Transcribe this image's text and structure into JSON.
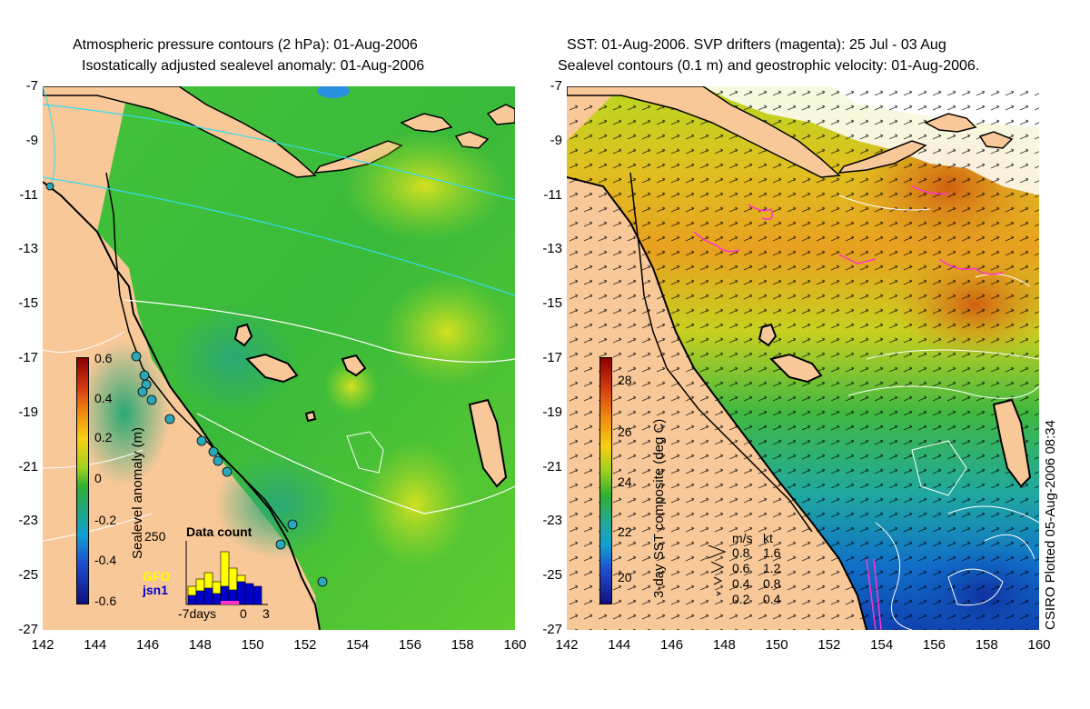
{
  "left_panel": {
    "title_line1": "Atmospheric pressure contours (2 hPa): 01-Aug-2006",
    "title_line2": "Isostatically adjusted sealevel anomaly: 01-Aug-2006",
    "colorbar_label": "Sealevel anomaly (m)",
    "colorbar_ticks": [
      "0.6",
      "0.4",
      "0.2",
      "0",
      "-0.2",
      "-0.4",
      "-0.6"
    ],
    "inset": {
      "title": "Data count",
      "ymax_label": "250",
      "series": [
        "GFO",
        "jsn1"
      ],
      "series_colors": [
        "#ffff00",
        "#0000cc"
      ],
      "x_labels": [
        "-7days",
        "0",
        "3"
      ]
    }
  },
  "right_panel": {
    "title_line1": "SST: 01-Aug-2006. SVP drifters (magenta): 25 Jul - 03 Aug",
    "title_line2": "Sealevel contours (0.1 m) and geostrophic velocity: 01-Aug-2006.",
    "colorbar_label": "3-day SST composite (deg C)",
    "colorbar_ticks": [
      "28",
      "26",
      "24",
      "22",
      "20"
    ],
    "velocity_legend": {
      "header_ms": "m/s",
      "header_kt": "kt",
      "rows": [
        {
          "ms": "0.8",
          "kt": "1.6"
        },
        {
          "ms": "0.6",
          "kt": "1.2"
        },
        {
          "ms": "0.4",
          "kt": "0.8"
        },
        {
          "ms": "0.2",
          "kt": "0.4"
        }
      ]
    },
    "credit": "CSIRO Plotted 05-Aug-2006 08:34"
  },
  "axes": {
    "lat_ticks": [
      "-7",
      "-9",
      "-11",
      "-13",
      "-15",
      "-17",
      "-19",
      "-21",
      "-23",
      "-25",
      "-27"
    ],
    "lon_ticks": [
      "142",
      "144",
      "146",
      "148",
      "150",
      "152",
      "154",
      "156",
      "158",
      "160"
    ]
  },
  "colors": {
    "land": "#f8c898",
    "coast": "#000000",
    "drifters": "#ff33cc",
    "contours": "#ffffff"
  }
}
